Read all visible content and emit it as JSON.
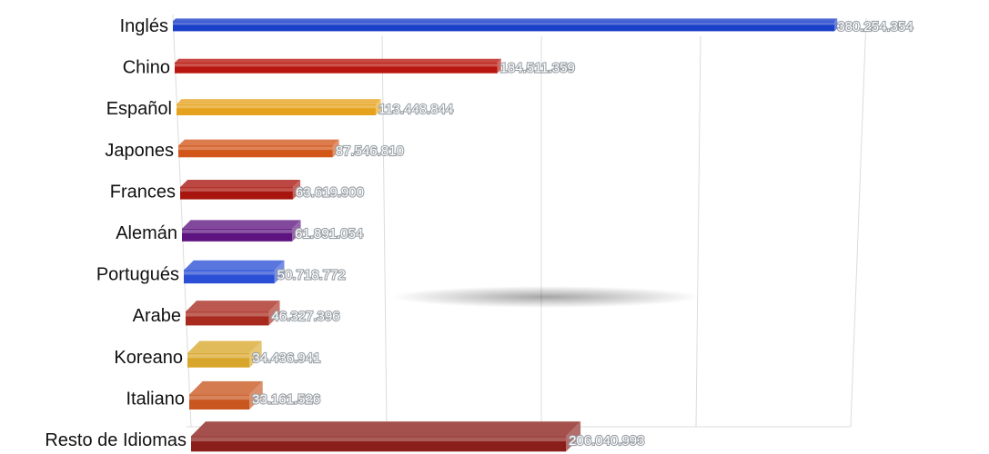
{
  "chart_data": {
    "type": "bar",
    "orientation": "horizontal",
    "style": "3d",
    "categories": [
      "Inglés",
      "Chino",
      "Español",
      "Japones",
      "Frances",
      "Alemán",
      "Portugués",
      "Arabe",
      "Koreano",
      "Italiano",
      "Resto de Idiomas"
    ],
    "values": [
      380254354,
      184511359,
      113448844,
      87546810,
      63619900,
      61891054,
      50718772,
      46327396,
      34436941,
      33161526,
      206040993
    ],
    "data_labels": [
      "380.254.354",
      "184.511.359",
      "113.448.844",
      "87.546.810",
      "63.619.900",
      "61.891.054",
      "50.718.772",
      "46.327.396",
      "34.436.941",
      "33.161.526",
      "206.040.993"
    ],
    "colors": [
      "#1a3fc8",
      "#b8160e",
      "#e6a21c",
      "#d2561a",
      "#a8140e",
      "#5e1480",
      "#2a4fd6",
      "#a82a1e",
      "#d8a62a",
      "#c8561e",
      "#8a1e1a"
    ],
    "xlim": [
      0,
      400000000
    ],
    "grid": "vertical",
    "legend": "none",
    "title": "",
    "xlabel": "",
    "ylabel": ""
  }
}
